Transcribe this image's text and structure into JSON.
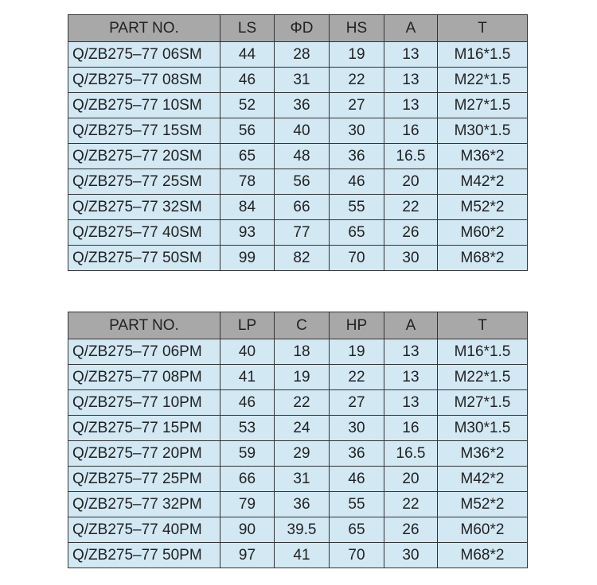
{
  "table1": {
    "headers": [
      "PART NO.",
      "LS",
      "ΦD",
      "HS",
      "A",
      "T"
    ],
    "rows": [
      [
        "Q/ZB275–77 06SM",
        "44",
        "28",
        "19",
        "13",
        "M16*1.5"
      ],
      [
        "Q/ZB275–77 08SM",
        "46",
        "31",
        "22",
        "13",
        "M22*1.5"
      ],
      [
        "Q/ZB275–77 10SM",
        "52",
        "36",
        "27",
        "13",
        "M27*1.5"
      ],
      [
        "Q/ZB275–77 15SM",
        "56",
        "40",
        "30",
        "16",
        "M30*1.5"
      ],
      [
        "Q/ZB275–77 20SM",
        "65",
        "48",
        "36",
        "16.5",
        "M36*2"
      ],
      [
        "Q/ZB275–77 25SM",
        "78",
        "56",
        "46",
        "20",
        "M42*2"
      ],
      [
        "Q/ZB275–77 32SM",
        "84",
        "66",
        "55",
        "22",
        "M52*2"
      ],
      [
        "Q/ZB275–77 40SM",
        "93",
        "77",
        "65",
        "26",
        "M60*2"
      ],
      [
        "Q/ZB275–77 50SM",
        "99",
        "82",
        "70",
        "30",
        "M68*2"
      ]
    ]
  },
  "table2": {
    "headers": [
      "PART NO.",
      "LP",
      "C",
      "HP",
      "A",
      "T"
    ],
    "rows": [
      [
        "Q/ZB275–77 06PM",
        "40",
        "18",
        "19",
        "13",
        "M16*1.5"
      ],
      [
        "Q/ZB275–77 08PM",
        "41",
        "19",
        "22",
        "13",
        "M22*1.5"
      ],
      [
        "Q/ZB275–77 10PM",
        "46",
        "22",
        "27",
        "13",
        "M27*1.5"
      ],
      [
        "Q/ZB275–77 15PM",
        "53",
        "24",
        "30",
        "16",
        "M30*1.5"
      ],
      [
        "Q/ZB275–77 20PM",
        "59",
        "29",
        "36",
        "16.5",
        "M36*2"
      ],
      [
        "Q/ZB275–77 25PM",
        "66",
        "31",
        "46",
        "20",
        "M42*2"
      ],
      [
        "Q/ZB275–77 32PM",
        "79",
        "36",
        "55",
        "22",
        "M52*2"
      ],
      [
        "Q/ZB275–77 40PM",
        "90",
        "39.5",
        "65",
        "26",
        "M60*2"
      ],
      [
        "Q/ZB275–77 50PM",
        "97",
        "41",
        "70",
        "30",
        "M68*2"
      ]
    ]
  }
}
